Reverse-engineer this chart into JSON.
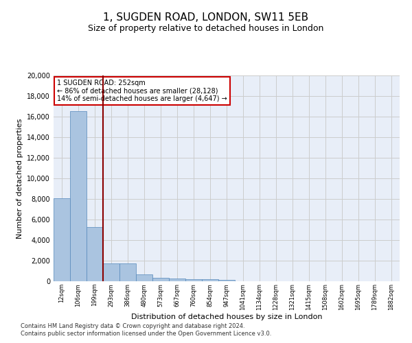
{
  "title": "1, SUGDEN ROAD, LONDON, SW11 5EB",
  "subtitle": "Size of property relative to detached houses in London",
  "xlabel": "Distribution of detached houses by size in London",
  "ylabel": "Number of detached properties",
  "footer_line1": "Contains HM Land Registry data © Crown copyright and database right 2024.",
  "footer_line2": "Contains public sector information licensed under the Open Government Licence v3.0.",
  "categories": [
    "12sqm",
    "106sqm",
    "199sqm",
    "293sqm",
    "386sqm",
    "480sqm",
    "573sqm",
    "667sqm",
    "760sqm",
    "854sqm",
    "947sqm",
    "1041sqm",
    "1134sqm",
    "1228sqm",
    "1321sqm",
    "1415sqm",
    "1508sqm",
    "1602sqm",
    "1695sqm",
    "1789sqm",
    "1882sqm"
  ],
  "values": [
    8100,
    16500,
    5300,
    1750,
    1750,
    650,
    330,
    260,
    210,
    190,
    160,
    0,
    0,
    0,
    0,
    0,
    0,
    0,
    0,
    0,
    0
  ],
  "bar_color": "#aac4e0",
  "bar_edge_color": "#5588bb",
  "vline_x": 2.5,
  "vline_color": "#8b0000",
  "annotation_text": "1 SUGDEN ROAD: 252sqm\n← 86% of detached houses are smaller (28,128)\n14% of semi-detached houses are larger (4,647) →",
  "annotation_box_color": "#ffffff",
  "annotation_box_edge_color": "#cc0000",
  "ylim": [
    0,
    20000
  ],
  "yticks": [
    0,
    2000,
    4000,
    6000,
    8000,
    10000,
    12000,
    14000,
    16000,
    18000,
    20000
  ],
  "grid_color": "#cccccc",
  "background_color": "#e8eef8",
  "title_fontsize": 11,
  "subtitle_fontsize": 9,
  "xlabel_fontsize": 8,
  "ylabel_fontsize": 8,
  "ytick_fontsize": 7,
  "xtick_fontsize": 6,
  "annotation_fontsize": 7,
  "footer_fontsize": 6
}
